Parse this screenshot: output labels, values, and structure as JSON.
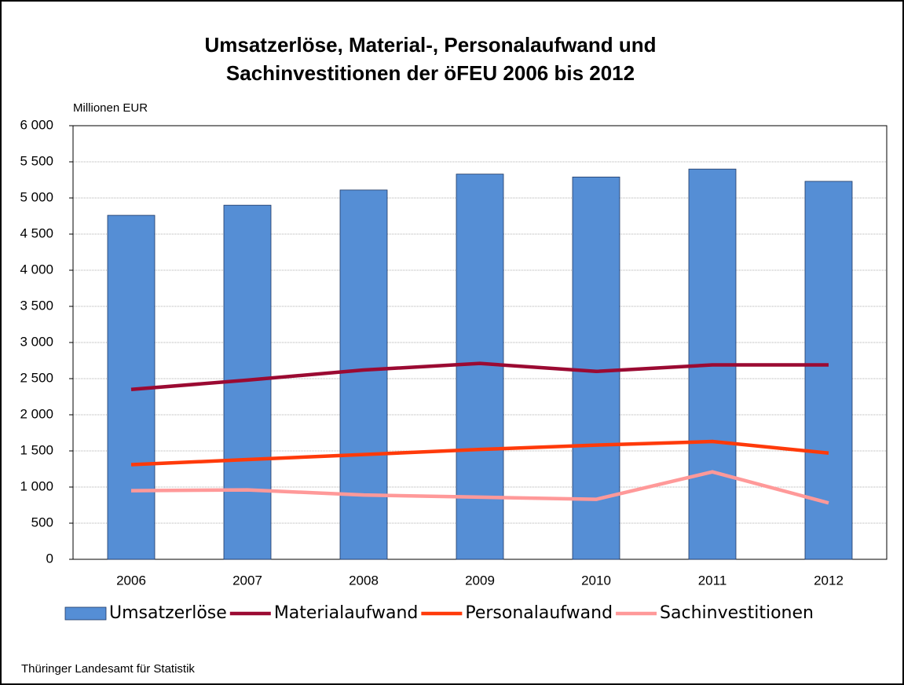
{
  "chart_data": {
    "type": "bar",
    "title": [
      "Umsatzerlöse, Material-, Personalaufwand und",
      "Sachinvestitionen  der öFEU 2006 bis 2012"
    ],
    "y_label": "Millionen EUR",
    "source": "Thüringer Landesamt für Statistik",
    "categories": [
      "2006",
      "2007",
      "2008",
      "2009",
      "2010",
      "2011",
      "2012"
    ],
    "series": [
      {
        "name": "Umsatzerlöse",
        "type": "bar",
        "color": "#558ed5",
        "values": [
          4760,
          4900,
          5110,
          5330,
          5290,
          5400,
          5230
        ]
      },
      {
        "name": "Materialaufwand",
        "type": "line",
        "color": "#9b0a32",
        "values": [
          2350,
          2480,
          2620,
          2710,
          2600,
          2690,
          2690
        ]
      },
      {
        "name": "Personalaufwand",
        "type": "line",
        "color": "#ff3a0a",
        "values": [
          1310,
          1380,
          1450,
          1520,
          1580,
          1630,
          1470
        ]
      },
      {
        "name": "Sachinvestitionen",
        "type": "line",
        "color": "#ff9999",
        "values": [
          950,
          960,
          890,
          860,
          830,
          1210,
          780
        ]
      }
    ],
    "ylim": [
      0,
      6000
    ],
    "yticks": [
      0,
      500,
      {
        "value": 1000,
        "label": "1 000"
      },
      {
        "value": 1500,
        "label": "1 500"
      },
      {
        "value": 2000,
        "label": "2 000"
      },
      {
        "value": 2500,
        "label": "2 500"
      },
      {
        "value": 3000,
        "label": "3 000"
      },
      {
        "value": 3500,
        "label": "3 500"
      },
      {
        "value": 4000,
        "label": "4 000"
      },
      {
        "value": 4500,
        "label": "4 500"
      },
      {
        "value": 5000,
        "label": "5 000"
      },
      {
        "value": 5500,
        "label": "5 500"
      },
      {
        "value": 6000,
        "label": "6 000"
      }
    ],
    "grid": true,
    "legend": "bottom"
  }
}
